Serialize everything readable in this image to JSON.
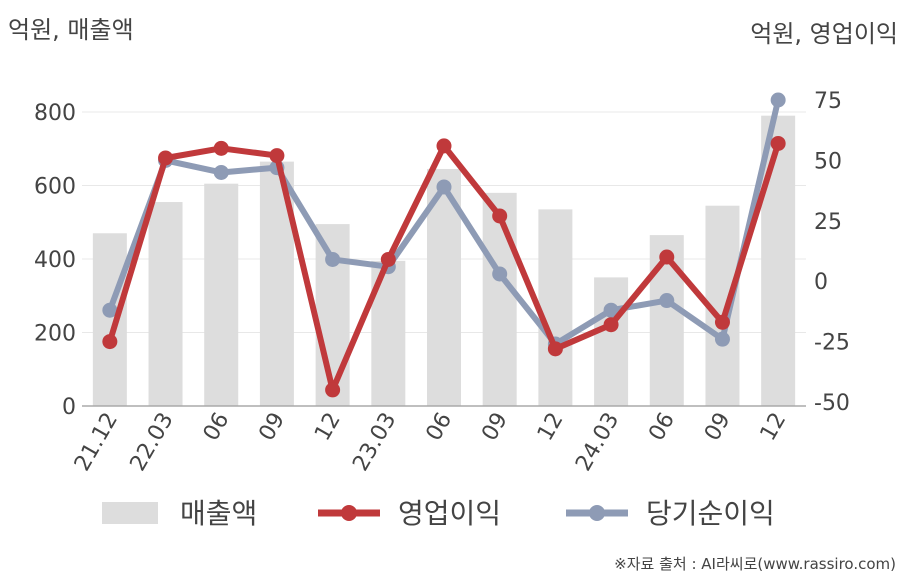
{
  "units": {
    "left": "억원, 매출액",
    "right": "억원, 영업이익"
  },
  "source": "※자료 출처 : AI라씨로(www.rassiro.com)",
  "colors": {
    "revenue": "#dddddd",
    "operating": "#c0393b",
    "net": "#8e9bb5",
    "axis": "#aaaaaa",
    "grid": "#e8e8e8"
  },
  "chart_data": {
    "type": "bar",
    "categories": [
      "21.12",
      "22.03",
      "06",
      "09",
      "12",
      "23.03",
      "06",
      "09",
      "12",
      "24.03",
      "06",
      "09",
      "12"
    ],
    "series": [
      {
        "name": "매출액",
        "type": "bar",
        "axis": "left",
        "values": [
          470,
          555,
          605,
          665,
          495,
          395,
          645,
          580,
          535,
          350,
          465,
          545,
          790
        ]
      },
      {
        "name": "영업이익",
        "type": "line",
        "axis": "right",
        "values": [
          -25,
          51,
          55,
          52,
          -45,
          9,
          56,
          27,
          -28,
          -18,
          10,
          -17,
          57
        ]
      },
      {
        "name": "당기순이익",
        "type": "line",
        "axis": "right",
        "values": [
          -12,
          50,
          45,
          47,
          9,
          6,
          39,
          3,
          -26,
          -12,
          -8,
          -24,
          75
        ]
      }
    ],
    "y_left": {
      "ticks": [
        0,
        200,
        400,
        600,
        800
      ],
      "range": [
        0,
        800
      ]
    },
    "y_right": {
      "ticks": [
        75,
        50,
        25,
        0,
        -25,
        -50
      ],
      "range": [
        -50,
        75
      ]
    },
    "grid": true,
    "legend": "bottom"
  }
}
